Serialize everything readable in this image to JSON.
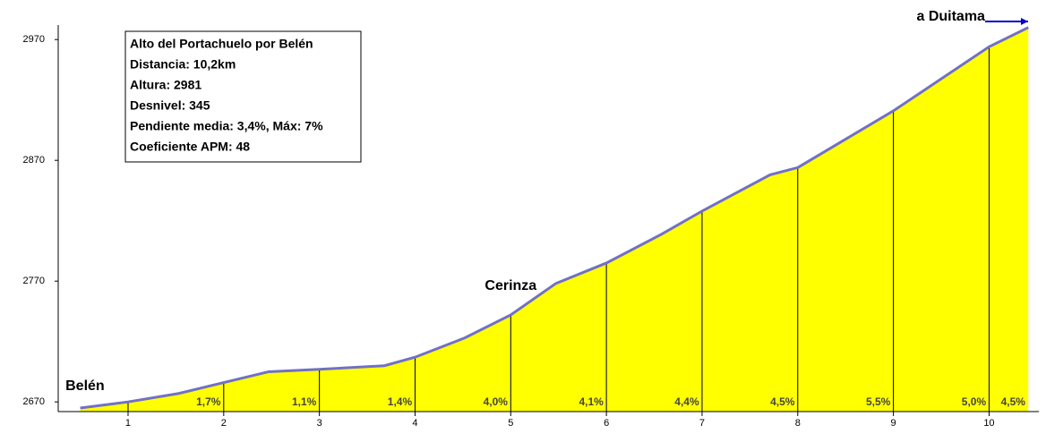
{
  "chart_data": {
    "type": "area",
    "info": [
      "Alto del Portachuelo por Belén",
      "Distancia: 10,2km",
      "Altura: 2981",
      "Desnivel: 345",
      "Pendiente media: 3,4%, Máx: 7%",
      "Coeficiente APM: 48"
    ],
    "annotations": [
      {
        "text": "Belén",
        "x": 0.55
      },
      {
        "text": "Cerinza",
        "x": 5
      },
      {
        "text": "a Duitama",
        "x": 9.6
      }
    ],
    "series": [
      {
        "color": "#7070c8",
        "fill": "#ffff00",
        "x": [
          0.5,
          1,
          1.53,
          2,
          2.47,
          3,
          3.68,
          4,
          4.52,
          5,
          5.47,
          6,
          6.58,
          7,
          7.71,
          8,
          9,
          10,
          10.41
        ],
        "values": [
          2665,
          2670,
          2677,
          2686,
          2695,
          2697,
          2700,
          2707,
          2723,
          2742,
          2768,
          2785,
          2809,
          2828,
          2858,
          2864,
          2911,
          2964,
          2980
        ]
      }
    ],
    "segment_labels": [
      "1,7%",
      "1,1%",
      "1,4%",
      "4,0%",
      "4,1%",
      "4,4%",
      "4,5%",
      "5,5%",
      "5,0%",
      "4,5%"
    ],
    "xlim": [
      0.27,
      10.52
    ],
    "xticks": [
      1,
      2,
      3,
      4,
      5,
      6,
      7,
      8,
      9,
      10
    ],
    "ylim": [
      2662,
      2982
    ],
    "yticks": [
      2670,
      2770,
      2870,
      2970
    ]
  }
}
